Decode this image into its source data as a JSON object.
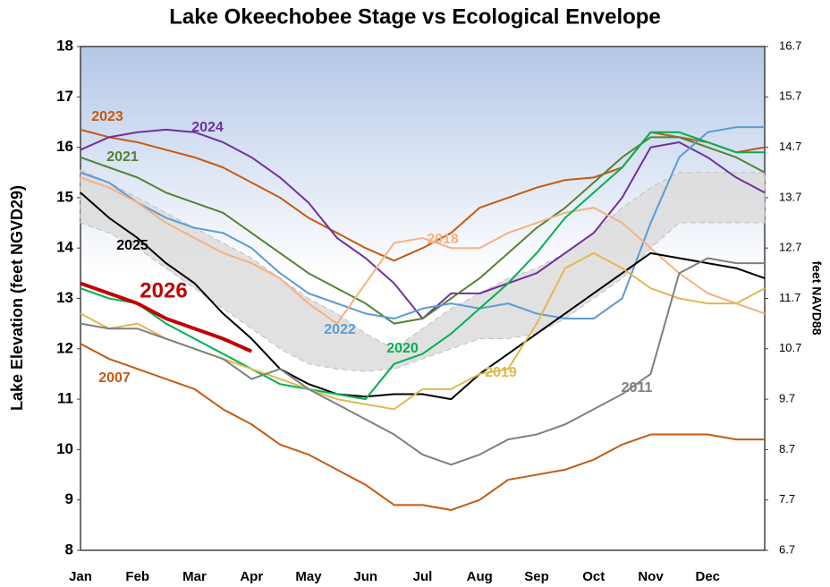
{
  "chart_data": {
    "type": "line",
    "title": "Lake Okeechobee Stage vs Ecological Envelope",
    "y_label": "Lake Elevation (feet NGVD29)",
    "y2_label": "feet NAVD88",
    "categories": [
      "Jan",
      null,
      "Feb",
      null,
      "Mar",
      null,
      "Apr",
      null,
      "May",
      null,
      "Jun",
      null,
      "Jul",
      null,
      "Aug",
      null,
      "Sep",
      null,
      "Oct",
      null,
      "Nov",
      null,
      "Dec",
      null,
      null
    ],
    "ylim": [
      8,
      18
    ],
    "yticks": [
      8,
      9,
      10,
      11,
      12,
      13,
      14,
      15,
      16,
      17,
      18
    ],
    "y2lim": [
      6.7,
      16.7
    ],
    "y2ticks": [
      6.7,
      7.7,
      8.7,
      9.7,
      10.7,
      11.7,
      12.7,
      13.7,
      14.7,
      15.7,
      16.7
    ],
    "envelope": {
      "color": "#dcdcdc",
      "upper": [
        15.55,
        15.3,
        15.0,
        14.7,
        14.4,
        14.1,
        13.8,
        13.4,
        13.0,
        12.7,
        12.3,
        12.0,
        12.4,
        12.8,
        13.1,
        13.4,
        13.6,
        13.9,
        14.3,
        14.8,
        15.2,
        15.5,
        15.5,
        15.5,
        15.5
      ],
      "lower": [
        14.5,
        14.3,
        14.0,
        13.6,
        13.2,
        12.8,
        12.4,
        12.0,
        11.7,
        11.6,
        11.55,
        11.6,
        11.8,
        12.0,
        12.2,
        12.2,
        12.3,
        12.6,
        13.0,
        13.4,
        14.0,
        14.5,
        14.5,
        14.5,
        14.5
      ]
    },
    "series": [
      {
        "name": "2023",
        "color": "#c55a11",
        "values": [
          16.35,
          16.2,
          16.1,
          15.95,
          15.8,
          15.6,
          15.3,
          15.0,
          14.6,
          14.3,
          14.0,
          13.75,
          14.0,
          14.3,
          14.8,
          15.0,
          15.2,
          15.35,
          15.4,
          15.6,
          16.3,
          16.2,
          16.1,
          15.9,
          16.0
        ]
      },
      {
        "name": "2024",
        "color": "#7030a0",
        "values": [
          15.95,
          16.2,
          16.3,
          16.35,
          16.3,
          16.1,
          15.8,
          15.4,
          14.9,
          14.2,
          13.8,
          13.3,
          12.6,
          13.1,
          13.1,
          13.3,
          13.5,
          13.9,
          14.3,
          15.0,
          16.0,
          16.1,
          15.8,
          15.4,
          15.1
        ]
      },
      {
        "name": "2021",
        "color": "#548235",
        "values": [
          15.8,
          15.6,
          15.4,
          15.1,
          14.9,
          14.7,
          14.3,
          13.9,
          13.5,
          13.2,
          12.9,
          12.5,
          12.6,
          13.0,
          13.4,
          13.9,
          14.4,
          14.8,
          15.3,
          15.8,
          16.2,
          16.2,
          16.0,
          15.8,
          15.5
        ]
      },
      {
        "name": "2022",
        "color": "#5b9bd5",
        "values": [
          15.5,
          15.3,
          14.9,
          14.6,
          14.4,
          14.3,
          14.0,
          13.5,
          13.1,
          12.9,
          12.7,
          12.6,
          12.8,
          12.9,
          12.8,
          12.9,
          12.7,
          12.6,
          12.6,
          13.0,
          14.5,
          15.8,
          16.3,
          16.4,
          16.4
        ]
      },
      {
        "name": "2018",
        "color": "#f4b183",
        "values": [
          15.4,
          15.2,
          14.9,
          14.5,
          14.2,
          13.9,
          13.7,
          13.4,
          12.9,
          12.5,
          13.3,
          14.1,
          14.2,
          14.0,
          14.0,
          14.3,
          14.5,
          14.7,
          14.8,
          14.5,
          14.0,
          13.5,
          13.1,
          12.9,
          12.7
        ]
      },
      {
        "name": "2025",
        "color": "#000000",
        "values": [
          15.1,
          14.6,
          14.2,
          13.7,
          13.3,
          12.7,
          12.2,
          11.6,
          11.3,
          11.1,
          11.05,
          11.1,
          11.1,
          11.0,
          11.5,
          11.9,
          12.3,
          12.7,
          13.1,
          13.5,
          13.9,
          13.8,
          13.7,
          13.6,
          13.4
        ]
      },
      {
        "name": "2020",
        "color": "#00b050",
        "values": [
          13.2,
          13.0,
          12.9,
          12.5,
          12.2,
          11.9,
          11.6,
          11.3,
          11.2,
          11.1,
          11.0,
          11.7,
          11.9,
          12.3,
          12.8,
          13.3,
          13.9,
          14.6,
          15.1,
          15.6,
          16.3,
          16.3,
          16.1,
          15.9,
          15.9
        ]
      },
      {
        "name": "2019",
        "color": "#e0b84e",
        "values": [
          12.7,
          12.4,
          12.5,
          12.2,
          12.0,
          11.8,
          11.6,
          11.4,
          11.2,
          11.0,
          10.9,
          10.8,
          11.2,
          11.2,
          11.5,
          11.6,
          12.5,
          13.6,
          13.9,
          13.6,
          13.2,
          13.0,
          12.9,
          12.9,
          13.2
        ]
      },
      {
        "name": "2011",
        "color": "#7f7f7f",
        "values": [
          12.5,
          12.4,
          12.4,
          12.2,
          12.0,
          11.8,
          11.4,
          11.6,
          11.2,
          10.9,
          10.6,
          10.3,
          9.9,
          9.7,
          9.9,
          10.2,
          10.3,
          10.5,
          10.8,
          11.1,
          11.5,
          13.5,
          13.8,
          13.7,
          13.7
        ]
      },
      {
        "name": "2007",
        "color": "#c55a11",
        "values": [
          12.1,
          11.8,
          11.6,
          11.4,
          11.2,
          10.8,
          10.5,
          10.1,
          9.9,
          9.6,
          9.3,
          8.9,
          8.9,
          8.8,
          9.0,
          9.4,
          9.5,
          9.6,
          9.8,
          10.1,
          10.3,
          10.3,
          10.3,
          10.2,
          10.2
        ]
      },
      {
        "name": "2026",
        "color": "#c00000",
        "values": [
          13.3,
          13.1,
          12.9,
          12.6,
          12.4,
          12.2,
          11.95,
          null,
          null,
          null,
          null,
          null,
          null,
          null,
          null,
          null,
          null,
          null,
          null,
          null,
          null,
          null,
          null,
          null,
          null
        ]
      }
    ]
  }
}
